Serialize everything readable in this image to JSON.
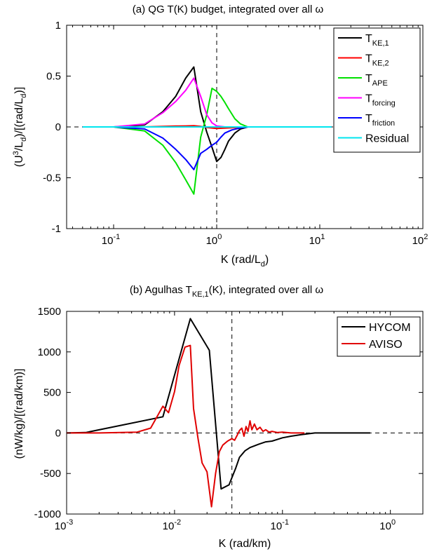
{
  "chart_data": [
    {
      "type": "line",
      "title": "(a) QG T(K) budget, integrated over all ω",
      "xlabel": "K (rad/L_d)",
      "ylabel": "(U^3/L_d)/[(rad/L_d)]",
      "xscale": "log",
      "xlim": [
        0.035,
        100
      ],
      "ylim": [
        -1,
        1
      ],
      "x_ticks": [
        {
          "base": "10",
          "exp": "-1"
        },
        {
          "base": "10",
          "exp": "0"
        },
        {
          "base": "10",
          "exp": "1"
        },
        {
          "base": "10",
          "exp": "2"
        }
      ],
      "y_ticks": [
        "-1",
        "-0.5",
        "0",
        "0.5",
        "1"
      ],
      "dashed_vline_at": 1,
      "dashed_hline_at": 0,
      "legend_position": "top-right",
      "series": [
        {
          "name": "T",
          "subscript": "KE,1",
          "color": "#000000",
          "x": [
            0.05,
            0.1,
            0.2,
            0.3,
            0.4,
            0.5,
            0.6,
            0.7,
            0.8,
            0.9,
            1.0,
            1.1,
            1.2,
            1.3,
            1.5,
            1.7,
            2.0,
            3,
            13
          ],
          "y": [
            0,
            0,
            0.02,
            0.15,
            0.3,
            0.48,
            0.59,
            0.15,
            -0.05,
            -0.2,
            -0.34,
            -0.3,
            -0.22,
            -0.14,
            -0.06,
            -0.02,
            0,
            0,
            0
          ]
        },
        {
          "name": "T",
          "subscript": "KE,2",
          "color": "#ff0000",
          "x": [
            0.05,
            0.1,
            0.2,
            0.3,
            0.4,
            0.5,
            0.6,
            0.7,
            0.8,
            1.0,
            1.3,
            1.6,
            2.0,
            3,
            13
          ],
          "y": [
            0,
            0,
            0,
            0.005,
            0.008,
            0.01,
            0.012,
            0.005,
            -0.005,
            -0.015,
            -0.01,
            -0.005,
            0,
            0,
            0
          ]
        },
        {
          "name": "T",
          "subscript": "APE",
          "color": "#00e000",
          "x": [
            0.05,
            0.1,
            0.2,
            0.3,
            0.4,
            0.5,
            0.6,
            0.7,
            0.8,
            0.9,
            1.0,
            1.1,
            1.2,
            1.3,
            1.5,
            1.7,
            2.0,
            2.3,
            3,
            13
          ],
          "y": [
            0,
            0,
            -0.04,
            -0.18,
            -0.35,
            -0.52,
            -0.66,
            -0.1,
            0.12,
            0.38,
            0.35,
            0.3,
            0.24,
            0.18,
            0.08,
            0.03,
            0,
            0,
            0,
            0
          ]
        },
        {
          "name": "T",
          "subscript": "forcing",
          "color": "#ff00ff",
          "x": [
            0.05,
            0.1,
            0.2,
            0.3,
            0.4,
            0.5,
            0.6,
            0.7,
            0.8,
            0.9,
            1.0,
            1.2,
            1.5,
            2.0,
            3,
            13
          ],
          "y": [
            0,
            0,
            0.03,
            0.14,
            0.25,
            0.36,
            0.48,
            0.3,
            0.12,
            0.04,
            0.01,
            0,
            0,
            0,
            0,
            0
          ]
        },
        {
          "name": "T",
          "subscript": "friction",
          "color": "#0000ff",
          "x": [
            0.05,
            0.1,
            0.2,
            0.3,
            0.4,
            0.5,
            0.6,
            0.7,
            0.8,
            0.9,
            1.0,
            1.1,
            1.2,
            1.4,
            1.7,
            2.0,
            3,
            13
          ],
          "y": [
            0,
            0,
            -0.02,
            -0.11,
            -0.22,
            -0.32,
            -0.42,
            -0.26,
            -0.22,
            -0.18,
            -0.15,
            -0.1,
            -0.06,
            -0.03,
            -0.01,
            0,
            0,
            0
          ]
        },
        {
          "name": "Residual",
          "subscript": "",
          "color": "#00e5ee",
          "x": [
            0.05,
            0.3,
            0.6,
            1.0,
            2.0,
            13
          ],
          "y": [
            0,
            0,
            0,
            0,
            0,
            0
          ]
        }
      ]
    },
    {
      "type": "line",
      "title": "(b) Agulhas T_KE,1(K), integrated over all ω",
      "xlabel": "K (rad/km)",
      "ylabel": "(nW/kg)/[(rad/km)]",
      "xscale": "log",
      "xlim": [
        0.001,
        2
      ],
      "ylim": [
        -1000,
        1500
      ],
      "x_ticks": [
        {
          "base": "10",
          "exp": "-3"
        },
        {
          "base": "10",
          "exp": "-2"
        },
        {
          "base": "10",
          "exp": "-1"
        },
        {
          "base": "10",
          "exp": "0"
        }
      ],
      "y_ticks": [
        "-1000",
        "-500",
        "0",
        "500",
        "1000",
        "1500"
      ],
      "dashed_vline_at": 0.034,
      "dashed_hline_at": 0,
      "legend_position": "top-right",
      "series": [
        {
          "name": "HYCOM",
          "color": "#000000",
          "x": [
            0.001,
            0.0015,
            0.0078,
            0.014,
            0.021,
            0.027,
            0.032,
            0.037,
            0.04,
            0.045,
            0.05,
            0.06,
            0.07,
            0.08,
            0.09,
            0.1,
            0.12,
            0.15,
            0.2,
            0.3,
            0.65
          ],
          "y": [
            0,
            5,
            200,
            1410,
            1020,
            -690,
            -640,
            -430,
            -300,
            -220,
            -180,
            -140,
            -110,
            -100,
            -80,
            -60,
            -40,
            -20,
            0,
            0,
            0
          ]
        },
        {
          "name": "AVISO",
          "color": "#e00000",
          "x": [
            0.001,
            0.002,
            0.0045,
            0.006,
            0.0078,
            0.0088,
            0.01,
            0.011,
            0.0125,
            0.014,
            0.015,
            0.0165,
            0.018,
            0.02,
            0.022,
            0.024,
            0.026,
            0.028,
            0.031,
            0.034,
            0.036,
            0.038,
            0.04,
            0.042,
            0.044,
            0.046,
            0.048,
            0.05,
            0.052,
            0.055,
            0.058,
            0.062,
            0.066,
            0.07,
            0.075,
            0.08,
            0.09,
            0.1,
            0.12,
            0.16
          ],
          "y": [
            0,
            0,
            10,
            60,
            330,
            250,
            510,
            830,
            1060,
            1080,
            300,
            -70,
            -370,
            -480,
            -910,
            -500,
            -230,
            -150,
            -100,
            -70,
            -90,
            -30,
            30,
            60,
            -40,
            80,
            20,
            150,
            40,
            110,
            40,
            70,
            20,
            40,
            10,
            20,
            5,
            10,
            0,
            0
          ]
        }
      ]
    }
  ]
}
